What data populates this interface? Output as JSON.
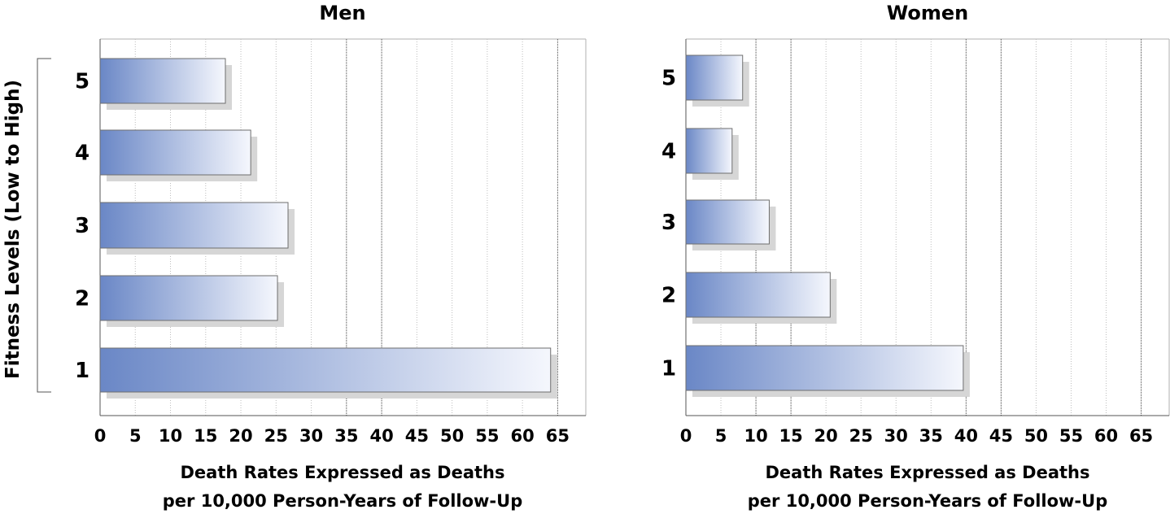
{
  "chart_data": [
    {
      "type": "bar",
      "orientation": "horizontal",
      "title": "Men",
      "categories": [
        "5",
        "4",
        "3",
        "2",
        "1"
      ],
      "values": [
        17.8,
        21.4,
        26.7,
        25.2,
        64.0
      ],
      "xlabel_lines": [
        "Death Rates Expressed as Deaths",
        "per 10,000 Person-Years of Follow-Up"
      ],
      "ylabel": "Fitness Levels (Low to High)",
      "xlim": [
        0,
        69
      ],
      "xticks": [
        0,
        5,
        10,
        15,
        20,
        25,
        30,
        35,
        40,
        45,
        50,
        55,
        60,
        65
      ],
      "major_gridlines": [
        35,
        40,
        65
      ],
      "grid": true,
      "bar_gradient": [
        "#6a87c6",
        "#f5f7fd"
      ]
    },
    {
      "type": "bar",
      "orientation": "horizontal",
      "title": "Women",
      "categories": [
        "5",
        "4",
        "3",
        "2",
        "1"
      ],
      "values": [
        8.1,
        6.6,
        11.9,
        20.6,
        39.6
      ],
      "xlabel_lines": [
        "Death Rates Expressed as Deaths",
        "per 10,000 Person-Years of Follow-Up"
      ],
      "ylabel": "",
      "xlim": [
        0,
        69
      ],
      "xticks": [
        0,
        5,
        10,
        15,
        20,
        25,
        30,
        35,
        40,
        45,
        50,
        55,
        60,
        65
      ],
      "major_gridlines": [
        10,
        15,
        40,
        45,
        65
      ],
      "grid": true,
      "bar_gradient": [
        "#6a87c6",
        "#f5f7fd"
      ]
    }
  ]
}
